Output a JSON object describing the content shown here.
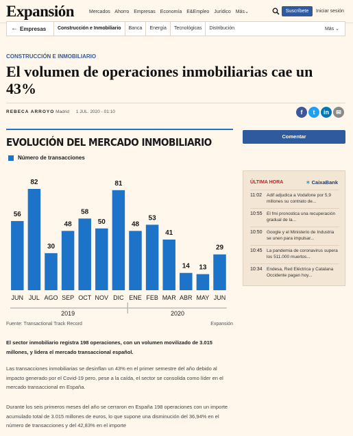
{
  "header": {
    "logo": "Expansión",
    "nav": [
      "Mercados",
      "Ahorro",
      "Empresas",
      "Economía",
      "E&Empleo",
      "Jurídico",
      "Más⌄"
    ],
    "subscribe_label": "Suscríbete",
    "login_label": "Iniciar sesión"
  },
  "section_bar": {
    "back_icon": "←",
    "current": "Empresas",
    "links": [
      "Construcción e Inmobiliario",
      "Banca",
      "Energía",
      "Tecnológicas",
      "Distribución"
    ],
    "more_label": "Más ⌄"
  },
  "article": {
    "kicker": "CONSTRUCCIÓN E INMOBILIARIO",
    "headline": "El volumen de operaciones inmobiliarias cae un 43%",
    "author": "REBECA ARROYO",
    "location": "Madrid",
    "date": "1 JUL. 2020 -",
    "time": "01:10",
    "share": [
      "f",
      "t",
      "in",
      "✉"
    ],
    "lede": "El sector inmobiliario registra 198 operaciones, con un volumen movilizado de 3.015 millones, y lidera el mercado transaccional español.",
    "p1": "Las transacciones inmobiliarias se desinflan un 43% en el primer semestre del año debido al impacto generado por el Covid-19 pero, pese a la caída, el sector se consolida como líder en el mercado transaccional en España.",
    "p2": "Durante los seis primeros meses del año se cerraron en España 198 operaciones con un importe acumulado total de 3.015 millones de euros, lo que supone una disminución del 36,94% en el número de transacciones y del 42,83% en el importe"
  },
  "chart_data": {
    "type": "bar",
    "title": "EVOLUCIÓN DEL MERCADO INMOBILIARIO",
    "categories": [
      "JUN",
      "JUL",
      "AGO",
      "SEP",
      "OCT",
      "NOV",
      "DIC",
      "ENE",
      "FEB",
      "MAR",
      "ABR",
      "MAY",
      "JUN"
    ],
    "series": [
      {
        "name": "Número de transacciones",
        "values": [
          56,
          82,
          30,
          48,
          58,
          50,
          81,
          48,
          53,
          41,
          14,
          13,
          29
        ],
        "color": "#1c73c7"
      }
    ],
    "year_groups": [
      {
        "label": "2019",
        "from": 0,
        "to": 6
      },
      {
        "label": "2020",
        "from": 7,
        "to": 12
      }
    ],
    "data_labels": true,
    "legend": "top-left",
    "source": "Fuente: Transactional Track Record",
    "credit": "Expansión"
  },
  "sidebar": {
    "comment_label": "Comentar",
    "latest_title": "ÚLTIMA HORA",
    "sponsor": "CaixaBank",
    "items": [
      {
        "time": "11:02",
        "text": "Adif adjudica a Vodafone por 5,9 millones su contrato de..."
      },
      {
        "time": "10:55",
        "text": "El fmi pronostica una recuperación gradual de la..."
      },
      {
        "time": "10:50",
        "text": "Google y el Ministerio de Industria se unen para impulsar..."
      },
      {
        "time": "10:45",
        "text": "La pandemia de coronavirus supera los 511.000 muertos..."
      },
      {
        "time": "10:34",
        "text": "Endesa, Red Eléctrica y Catalana Occidente pagan hoy..."
      }
    ]
  },
  "colors": {
    "accent": "#2f5b9e",
    "chart_blue": "#1c73c7",
    "breaking": "#c3202a",
    "background": "#fff7ec"
  }
}
